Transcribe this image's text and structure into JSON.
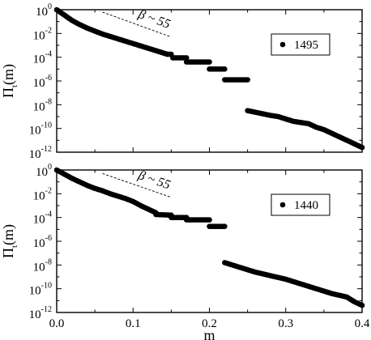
{
  "chart_data": [
    {
      "type": "scatter",
      "ylabel_main": "Π",
      "ylabel_sub": "t",
      "ylabel_tail": "(m)",
      "xlim": [
        0,
        0.4
      ],
      "ylim_exp": [
        -12,
        0
      ],
      "yscale": "log",
      "y_ticks": [
        {
          "base": "10",
          "exp": "0"
        },
        {
          "base": "10",
          "exp": "-2"
        },
        {
          "base": "10",
          "exp": "-4"
        },
        {
          "base": "10",
          "exp": "-6"
        },
        {
          "base": "10",
          "exp": "-8"
        },
        {
          "base": "10",
          "exp": "-10"
        },
        {
          "base": "10",
          "exp": "-12"
        }
      ],
      "legend": {
        "label": "1495",
        "position": "top-right"
      },
      "annotation": {
        "text": "β ~ 55",
        "x_from": 0.06,
        "log10y_from": -0.2,
        "x_to": 0.15,
        "log10y_to": -2.3
      },
      "segments": [
        {
          "x": [
            0.0,
            0.01,
            0.02,
            0.03,
            0.04,
            0.05,
            0.06,
            0.07,
            0.08,
            0.09,
            0.1,
            0.11,
            0.12,
            0.13,
            0.14,
            0.145
          ],
          "log10y": [
            0.0,
            -0.45,
            -0.9,
            -1.25,
            -1.55,
            -1.8,
            -2.05,
            -2.25,
            -2.45,
            -2.65,
            -2.85,
            -3.05,
            -3.25,
            -3.45,
            -3.65,
            -3.75
          ]
        },
        {
          "x": [
            0.145,
            0.15
          ],
          "log10y": [
            -3.75,
            -3.75
          ]
        },
        {
          "x": [
            0.152,
            0.17
          ],
          "log10y": [
            -4.05,
            -4.05
          ]
        },
        {
          "x": [
            0.17,
            0.2
          ],
          "log10y": [
            -4.4,
            -4.4
          ]
        },
        {
          "x": [
            0.2,
            0.22
          ],
          "log10y": [
            -5.0,
            -5.0
          ]
        },
        {
          "x": [
            0.22,
            0.25
          ],
          "log10y": [
            -5.9,
            -5.9
          ]
        },
        {
          "x": [
            0.25,
            0.265,
            0.28,
            0.29,
            0.3,
            0.31,
            0.32,
            0.33,
            0.34,
            0.35,
            0.36,
            0.37,
            0.38,
            0.39,
            0.4
          ],
          "log10y": [
            -8.5,
            -8.7,
            -8.9,
            -9.0,
            -9.2,
            -9.4,
            -9.5,
            -9.6,
            -9.9,
            -10.1,
            -10.4,
            -10.7,
            -11.0,
            -11.3,
            -11.6
          ]
        }
      ]
    },
    {
      "type": "scatter",
      "xlabel": "m",
      "ylabel_main": "Π",
      "ylabel_sub": "t",
      "ylabel_tail": "(m)",
      "xlim": [
        0,
        0.4
      ],
      "ylim_exp": [
        -12,
        0
      ],
      "yscale": "log",
      "x_ticks": [
        "0.0",
        "0.1",
        "0.2",
        "0.3",
        "0.4"
      ],
      "y_ticks": [
        {
          "base": "10",
          "exp": "0"
        },
        {
          "base": "10",
          "exp": "-2"
        },
        {
          "base": "10",
          "exp": "-4"
        },
        {
          "base": "10",
          "exp": "-6"
        },
        {
          "base": "10",
          "exp": "-8"
        },
        {
          "base": "10",
          "exp": "-10"
        },
        {
          "base": "10",
          "exp": "-12"
        }
      ],
      "legend": {
        "label": "1440",
        "position": "top-right"
      },
      "annotation": {
        "text": "β ~ 55",
        "x_from": 0.06,
        "log10y_from": -0.3,
        "x_to": 0.15,
        "log10y_to": -2.3
      },
      "segments": [
        {
          "x": [
            0.0,
            0.01,
            0.02,
            0.03,
            0.04,
            0.05,
            0.06,
            0.07,
            0.08,
            0.09,
            0.1,
            0.11,
            0.12,
            0.13
          ],
          "log10y": [
            0.0,
            -0.35,
            -0.7,
            -1.0,
            -1.3,
            -1.55,
            -1.75,
            -2.0,
            -2.2,
            -2.4,
            -2.65,
            -3.0,
            -3.3,
            -3.6
          ]
        },
        {
          "x": [
            0.13,
            0.15
          ],
          "log10y": [
            -3.75,
            -3.8
          ]
        },
        {
          "x": [
            0.15,
            0.17
          ],
          "log10y": [
            -4.0,
            -4.0
          ]
        },
        {
          "x": [
            0.17,
            0.2
          ],
          "log10y": [
            -4.2,
            -4.2
          ]
        },
        {
          "x": [
            0.2,
            0.22
          ],
          "log10y": [
            -4.75,
            -4.75
          ]
        },
        {
          "x": [
            0.22,
            0.24,
            0.26,
            0.28,
            0.3,
            0.32,
            0.34,
            0.36,
            0.38,
            0.39,
            0.4
          ],
          "log10y": [
            -7.8,
            -8.2,
            -8.6,
            -8.9,
            -9.2,
            -9.6,
            -10.0,
            -10.4,
            -10.7,
            -11.1,
            -11.4
          ]
        }
      ]
    }
  ]
}
